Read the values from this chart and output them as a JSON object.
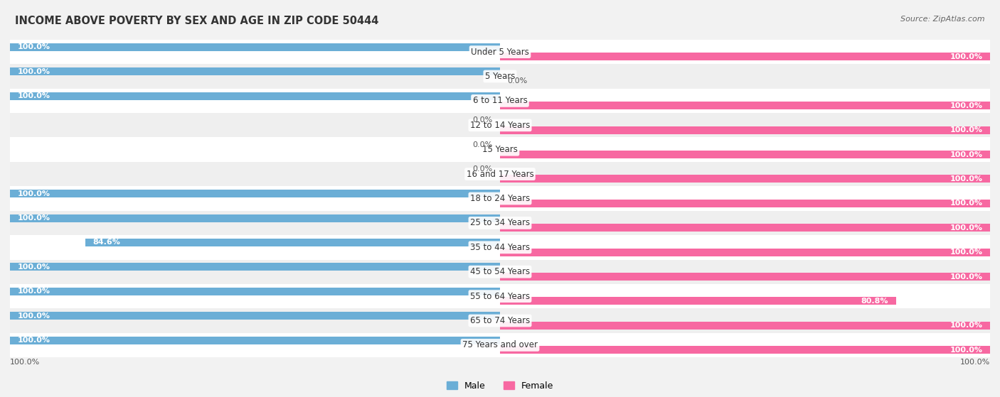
{
  "title": "INCOME ABOVE POVERTY BY SEX AND AGE IN ZIP CODE 50444",
  "source": "Source: ZipAtlas.com",
  "categories": [
    "Under 5 Years",
    "5 Years",
    "6 to 11 Years",
    "12 to 14 Years",
    "15 Years",
    "16 and 17 Years",
    "18 to 24 Years",
    "25 to 34 Years",
    "35 to 44 Years",
    "45 to 54 Years",
    "55 to 64 Years",
    "65 to 74 Years",
    "75 Years and over"
  ],
  "male_values": [
    100.0,
    100.0,
    100.0,
    0.0,
    0.0,
    0.0,
    100.0,
    100.0,
    84.6,
    100.0,
    100.0,
    100.0,
    100.0
  ],
  "female_values": [
    100.0,
    0.0,
    100.0,
    100.0,
    100.0,
    100.0,
    100.0,
    100.0,
    100.0,
    100.0,
    80.8,
    100.0,
    100.0
  ],
  "male_color": "#6baed6",
  "female_color": "#f768a1",
  "male_color_light": "#c6dbef",
  "female_color_light": "#fcc5c0",
  "bg_odd": "#ffffff",
  "bg_even": "#efefef",
  "max_value": 100.0,
  "title_fontsize": 10.5,
  "label_fontsize": 8.5,
  "value_fontsize": 8,
  "source_fontsize": 8
}
